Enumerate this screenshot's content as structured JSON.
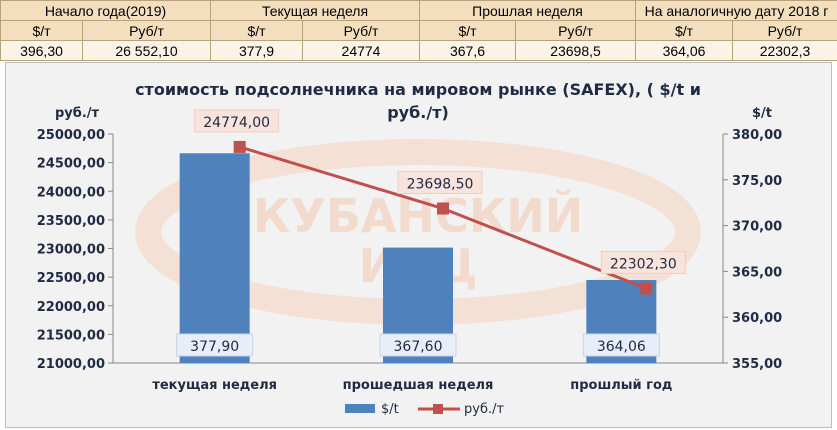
{
  "table": {
    "groups": [
      "Начало года(2019)",
      "Текущая неделя",
      "Прошлая неделя",
      "На аналогичную дату 2018 г"
    ],
    "subheaders": [
      "$/т",
      "Руб/т",
      "$/т",
      "Руб/т",
      "$/т",
      "Руб/т",
      "$/т",
      "Руб/т"
    ],
    "values": [
      "396,30",
      "26 552,10",
      "377,9",
      "24774",
      "367,6",
      "23698,5",
      "364,06",
      "22302,3"
    ]
  },
  "watermark": {
    "line1": "КУБАНСКИЙ",
    "line2": "ИКЦ"
  },
  "chart_data": {
    "type": "bar",
    "title": "стоимость подсолнечника на мировом рынке (SAFEX), ( $/t и руб./т)",
    "title_lines": [
      "стоимость подсолнечника на мировом рынке (SAFEX), ( $/t и",
      "руб./т)"
    ],
    "categories": [
      "текущая неделя",
      "прошедшая неделя",
      "прошлый год"
    ],
    "series": [
      {
        "name": "$/t",
        "type": "bar",
        "axis": "right",
        "color": "#4f81bd",
        "values": [
          377.9,
          367.6,
          364.06
        ],
        "labels": [
          "377,90",
          "367,60",
          "364,06"
        ]
      },
      {
        "name": "руб./т",
        "type": "line",
        "axis": "left",
        "color": "#c0504d",
        "values": [
          24774.0,
          23698.5,
          22302.3
        ],
        "labels": [
          "24774,00",
          "23698,50",
          "22302,30"
        ]
      }
    ],
    "ylabel": "руб./т",
    "ylabel_right": "$/t",
    "ylim": [
      21000,
      25000
    ],
    "yticks": [
      "21000,00",
      "21500,00",
      "22000,00",
      "22500,00",
      "23000,00",
      "23500,00",
      "24000,00",
      "24500,00",
      "25000,00"
    ],
    "ylim_right": [
      355,
      380
    ],
    "yticks_right": [
      "355,00",
      "360,00",
      "365,00",
      "370,00",
      "375,00",
      "380,00"
    ],
    "grid": false,
    "legend": "bottom"
  }
}
